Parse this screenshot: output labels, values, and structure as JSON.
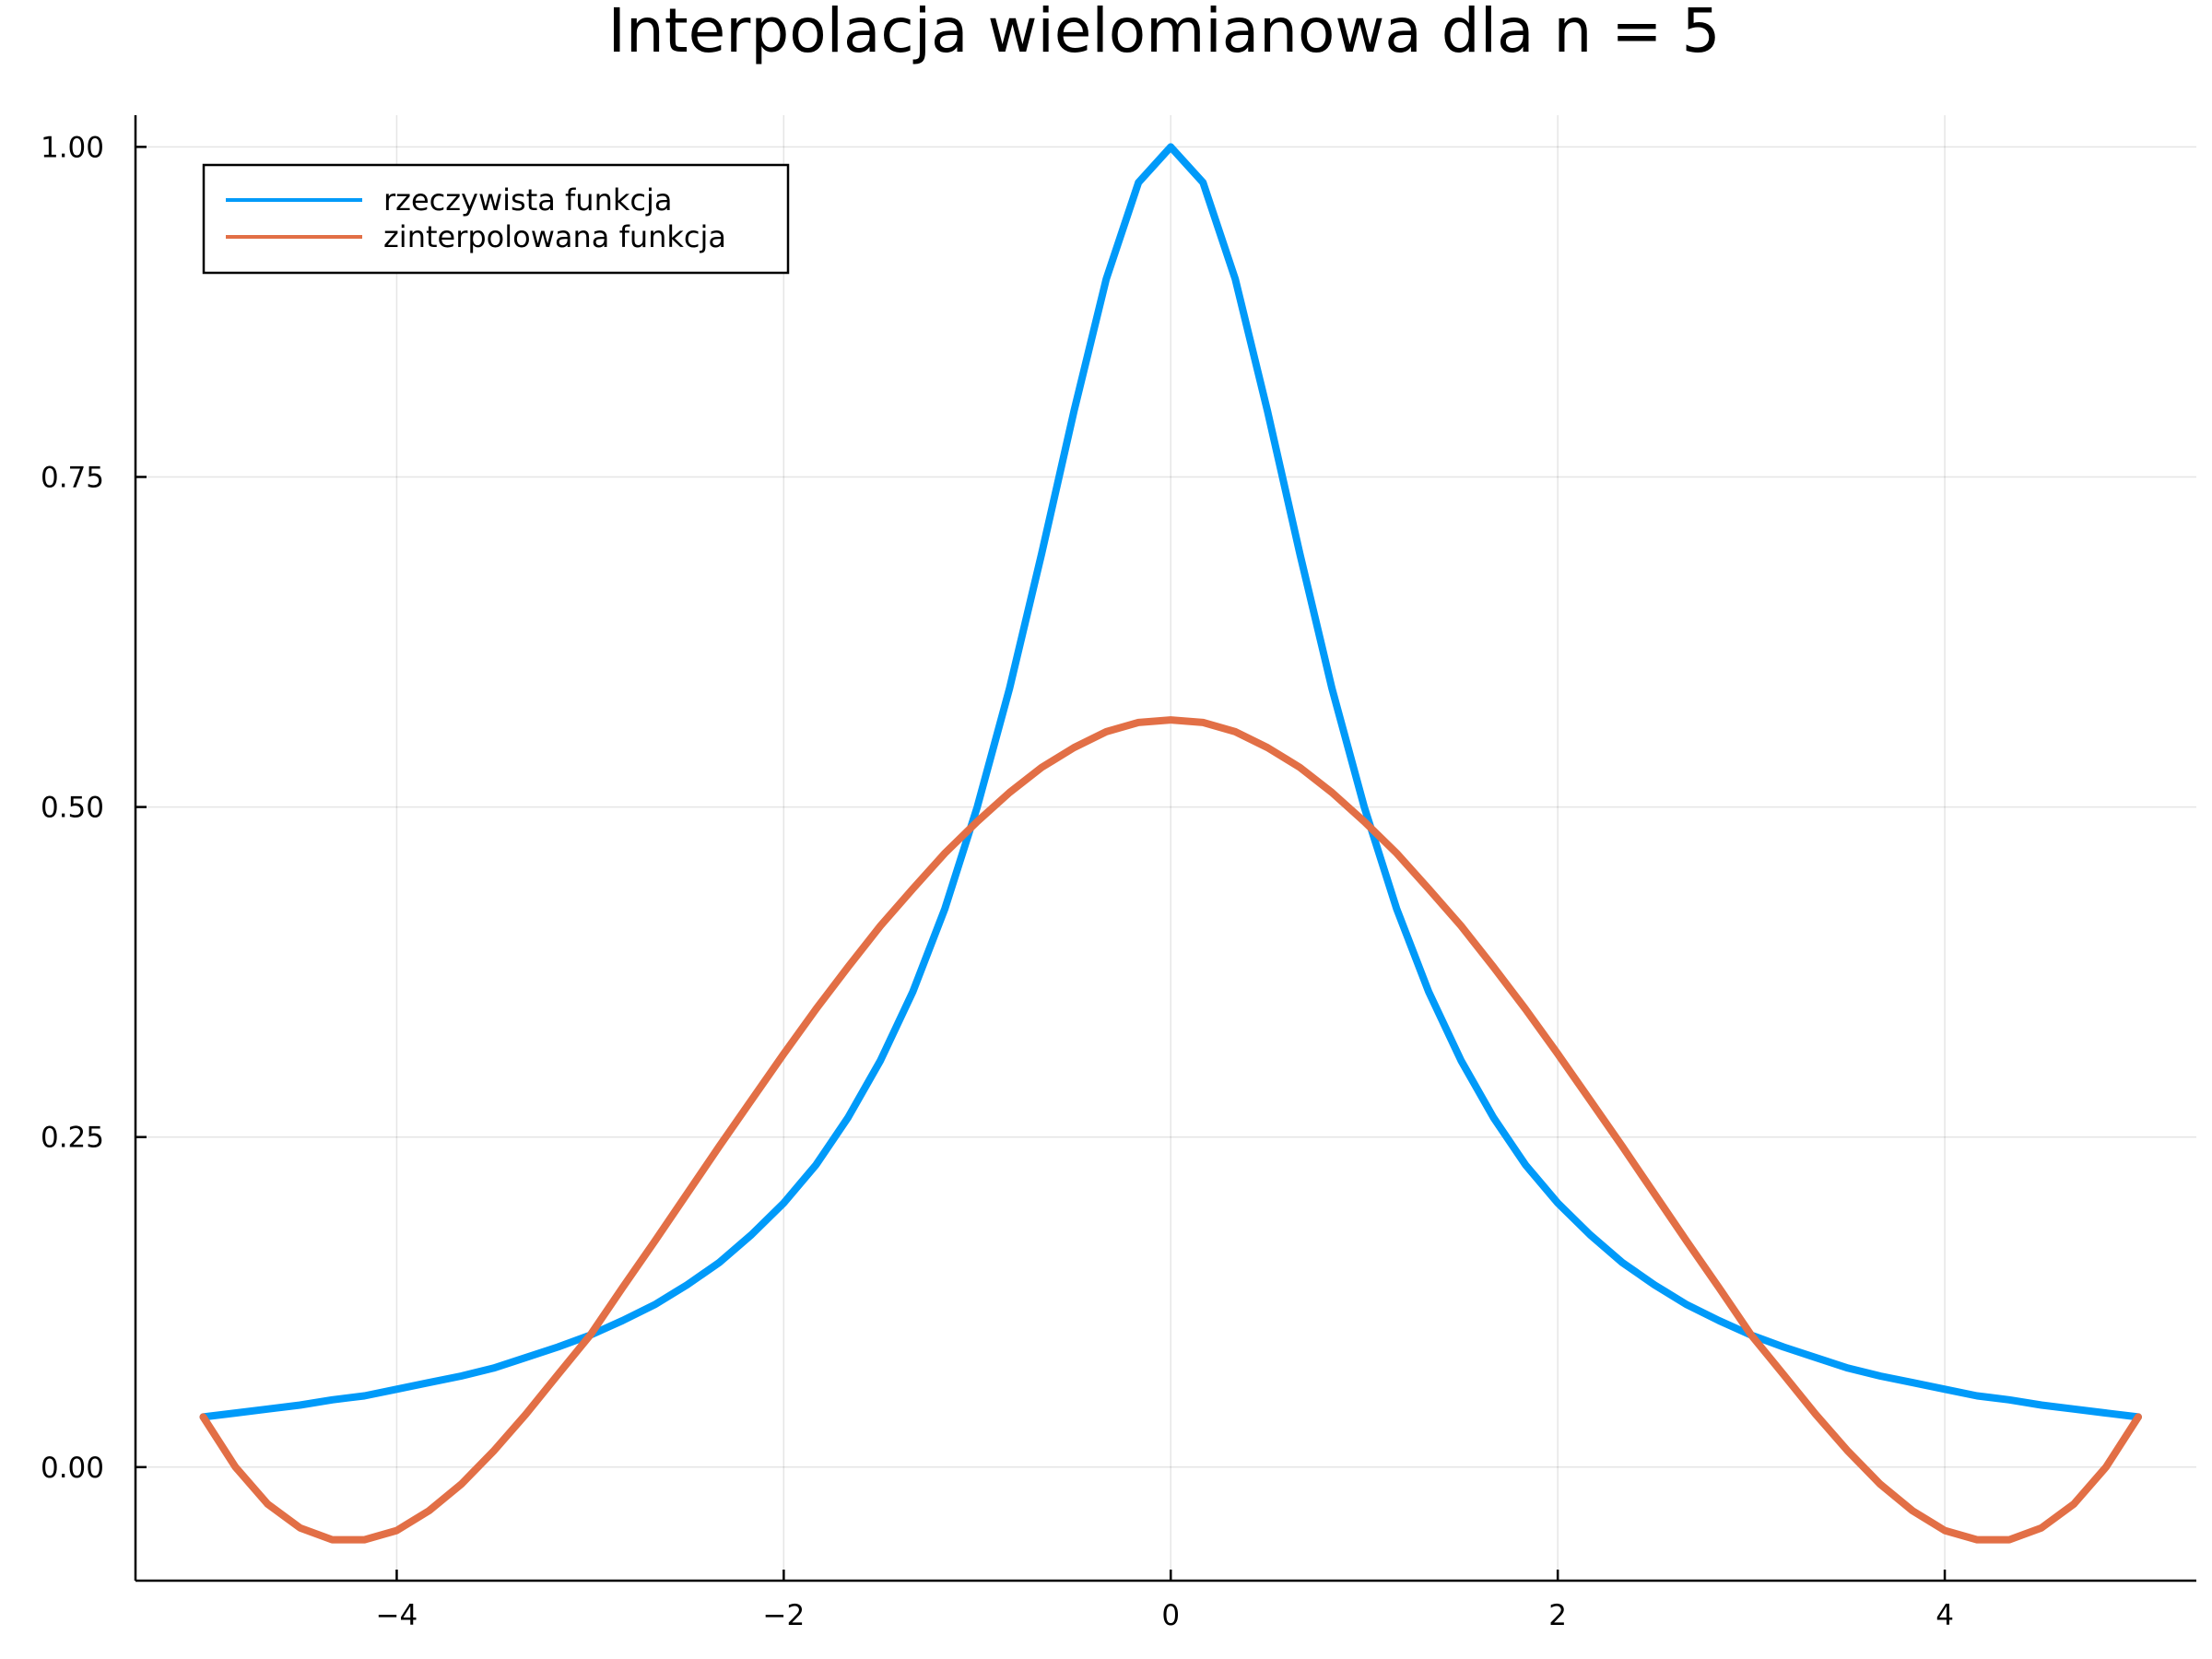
{
  "chart_data": {
    "type": "line",
    "title": "Interpolacja wielomianowa dla n = 5",
    "xlabel": "",
    "ylabel": "",
    "xlim": [
      -5.35,
      5.3
    ],
    "ylim": [
      -0.086,
      1.024
    ],
    "xticks": [
      -4,
      -2,
      0,
      2,
      4
    ],
    "xtick_labels": [
      "−4",
      "−2",
      "0",
      "2",
      "4"
    ],
    "yticks": [
      0,
      0.25,
      0.5,
      0.75,
      1.0
    ],
    "ytick_labels": [
      "0.00",
      "0.25",
      "0.50",
      "0.75",
      "1.00"
    ],
    "grid": true,
    "legend_position": "top-left",
    "series": [
      {
        "name": "rzeczywista funkcja",
        "color": "#009af9",
        "x": [
          -5.0,
          -4.833,
          -4.667,
          -4.5,
          -4.333,
          -4.167,
          -4.0,
          -3.833,
          -3.667,
          -3.5,
          -3.333,
          -3.167,
          -3.0,
          -2.833,
          -2.667,
          -2.5,
          -2.333,
          -2.167,
          -2.0,
          -1.833,
          -1.667,
          -1.5,
          -1.333,
          -1.167,
          -1.0,
          -0.833,
          -0.667,
          -0.5,
          -0.333,
          -0.167,
          0.0,
          0.167,
          0.333,
          0.5,
          0.667,
          0.833,
          1.0,
          1.167,
          1.333,
          1.5,
          1.667,
          1.833,
          2.0,
          2.167,
          2.333,
          2.5,
          2.667,
          2.833,
          3.0,
          3.167,
          3.333,
          3.5,
          3.667,
          3.833,
          4.0,
          4.167,
          4.333,
          4.5,
          4.667,
          4.833,
          5.0
        ],
        "y": [
          0.038,
          0.041,
          0.044,
          0.047,
          0.051,
          0.054,
          0.059,
          0.064,
          0.069,
          0.075,
          0.083,
          0.091,
          0.1,
          0.111,
          0.123,
          0.138,
          0.155,
          0.176,
          0.2,
          0.229,
          0.265,
          0.308,
          0.36,
          0.423,
          0.5,
          0.59,
          0.692,
          0.8,
          0.9,
          0.973,
          1.0,
          0.973,
          0.9,
          0.8,
          0.692,
          0.59,
          0.5,
          0.423,
          0.36,
          0.308,
          0.265,
          0.229,
          0.2,
          0.176,
          0.155,
          0.138,
          0.123,
          0.111,
          0.1,
          0.091,
          0.083,
          0.075,
          0.069,
          0.064,
          0.059,
          0.054,
          0.051,
          0.047,
          0.044,
          0.041,
          0.038
        ]
      },
      {
        "name": "zinterpolowana funkcja",
        "color": "#e26f46",
        "x": [
          -5.0,
          -4.833,
          -4.667,
          -4.5,
          -4.333,
          -4.167,
          -4.0,
          -3.833,
          -3.667,
          -3.5,
          -3.333,
          -3.167,
          -3.0,
          -2.833,
          -2.667,
          -2.5,
          -2.333,
          -2.167,
          -2.0,
          -1.833,
          -1.667,
          -1.5,
          -1.333,
          -1.167,
          -1.0,
          -0.833,
          -0.667,
          -0.5,
          -0.333,
          -0.167,
          0.0,
          0.167,
          0.333,
          0.5,
          0.667,
          0.833,
          1.0,
          1.167,
          1.333,
          1.5,
          1.667,
          1.833,
          2.0,
          2.167,
          2.333,
          2.5,
          2.667,
          2.833,
          3.0,
          3.167,
          3.333,
          3.5,
          3.667,
          3.833,
          4.0,
          4.167,
          4.333,
          4.5,
          4.667,
          4.833,
          5.0
        ],
        "y": [
          0.038,
          0.0,
          -0.028,
          -0.046,
          -0.055,
          -0.055,
          -0.048,
          -0.033,
          -0.013,
          0.012,
          0.04,
          0.07,
          0.1,
          0.136,
          0.171,
          0.207,
          0.243,
          0.278,
          0.313,
          0.347,
          0.379,
          0.41,
          0.438,
          0.465,
          0.489,
          0.511,
          0.53,
          0.545,
          0.557,
          0.564,
          0.566,
          0.564,
          0.557,
          0.545,
          0.53,
          0.511,
          0.489,
          0.465,
          0.438,
          0.41,
          0.379,
          0.347,
          0.313,
          0.278,
          0.243,
          0.207,
          0.171,
          0.136,
          0.1,
          0.07,
          0.04,
          0.012,
          -0.013,
          -0.033,
          -0.048,
          -0.055,
          -0.055,
          -0.046,
          -0.028,
          0.0,
          0.038
        ]
      }
    ]
  }
}
